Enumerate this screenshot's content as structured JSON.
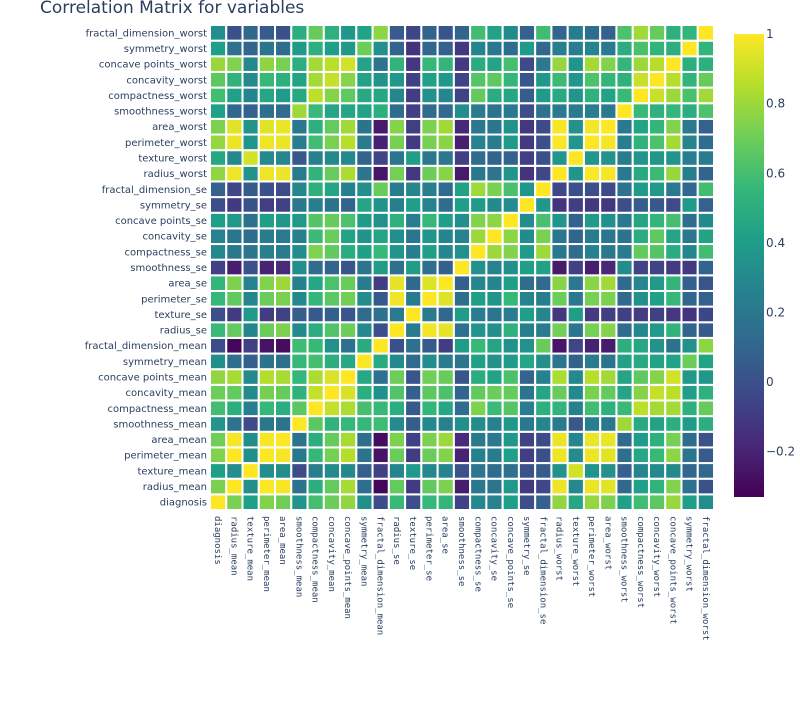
{
  "chart_data": {
    "type": "heatmap",
    "title": "Correlation Matrix for variables",
    "colorscale": "viridis",
    "colorscale_stops": [
      "#440154",
      "#482878",
      "#3e4989",
      "#31688e",
      "#26828e",
      "#1f9e89",
      "#35b779",
      "#6ece58",
      "#b5de2b",
      "#fde725"
    ],
    "zmin": -0.33,
    "zmax": 1.0,
    "colorbar_ticks": [
      1,
      0.8,
      0.6,
      0.4,
      0.2,
      0,
      -0.2
    ],
    "colorbar_tick_labels": [
      "1",
      "0.8",
      "0.6",
      "0.4",
      "0.2",
      "0",
      "−0.2"
    ],
    "variables": [
      "diagnosis",
      "radius_mean",
      "texture_mean",
      "perimeter_mean",
      "area_mean",
      "smoothness_mean",
      "compactness_mean",
      "concavity_mean",
      "concave points_mean",
      "symmetry_mean",
      "fractal_dimension_mean",
      "radius_se",
      "texture_se",
      "perimeter_se",
      "area_se",
      "smoothness_se",
      "compactness_se",
      "concavity_se",
      "concave points_se",
      "symmetry_se",
      "fractal_dimension_se",
      "radius_worst",
      "texture_worst",
      "perimeter_worst",
      "area_worst",
      "smoothness_worst",
      "compactness_worst",
      "concavity_worst",
      "concave points_worst",
      "symmetry_worst",
      "fractal_dimension_worst"
    ],
    "x_labels": [
      "diagnosis",
      "radius_mean",
      "texture_mean",
      "perimeter_mean",
      "area_mean",
      "smoothness_mean",
      "compactness_mean",
      "concavity_mean",
      "concave_points_mean",
      "symmetry_mean",
      "fractal_dimension_mean",
      "radius_se",
      "texture_se",
      "perimeter_se",
      "area_se",
      "smoothness_se",
      "compactness_se",
      "concavity_se",
      "concave_points_se",
      "symmetry_se",
      "fractal_dimension_se",
      "radius_worst",
      "texture_worst",
      "perimeter_worst",
      "area_worst",
      "smoothness_worst",
      "compactness_worst",
      "concavity_worst",
      "concave_points_worst",
      "symmetry_worst",
      "fractal_dimension_worst"
    ],
    "z": [
      [
        1.0,
        0.73,
        0.415,
        0.743,
        0.709,
        0.359,
        0.597,
        0.696,
        0.777,
        0.33,
        -0.013,
        0.567,
        -0.008,
        0.556,
        0.548,
        -0.067,
        0.293,
        0.254,
        0.408,
        -0.007,
        0.078,
        0.776,
        0.457,
        0.783,
        0.734,
        0.421,
        0.591,
        0.66,
        0.794,
        0.416,
        0.324
      ],
      [
        0.73,
        1.0,
        0.324,
        0.998,
        0.987,
        0.171,
        0.506,
        0.677,
        0.823,
        0.148,
        -0.312,
        0.679,
        -0.097,
        0.674,
        0.736,
        -0.223,
        0.206,
        0.194,
        0.376,
        -0.104,
        -0.043,
        0.97,
        0.297,
        0.965,
        0.941,
        0.12,
        0.413,
        0.527,
        0.744,
        0.164,
        0.007
      ],
      [
        0.415,
        0.324,
        1.0,
        0.33,
        0.321,
        -0.023,
        0.237,
        0.302,
        0.293,
        0.071,
        -0.076,
        0.276,
        0.386,
        0.282,
        0.26,
        0.007,
        0.192,
        0.143,
        0.164,
        0.009,
        0.054,
        0.353,
        0.912,
        0.358,
        0.344,
        0.078,
        0.278,
        0.301,
        0.295,
        0.105,
        0.119
      ],
      [
        0.743,
        0.998,
        0.33,
        1.0,
        0.987,
        0.207,
        0.557,
        0.716,
        0.851,
        0.183,
        -0.261,
        0.692,
        -0.087,
        0.693,
        0.745,
        -0.203,
        0.251,
        0.228,
        0.407,
        -0.082,
        -0.006,
        0.969,
        0.303,
        0.97,
        0.942,
        0.151,
        0.456,
        0.564,
        0.771,
        0.189,
        0.051
      ],
      [
        0.709,
        0.987,
        0.321,
        0.987,
        1.0,
        0.177,
        0.499,
        0.686,
        0.823,
        0.151,
        -0.283,
        0.733,
        -0.066,
        0.727,
        0.8,
        -0.167,
        0.213,
        0.208,
        0.372,
        -0.072,
        -0.02,
        0.963,
        0.287,
        0.959,
        0.959,
        0.124,
        0.39,
        0.513,
        0.722,
        0.144,
        0.004
      ],
      [
        0.359,
        0.171,
        -0.023,
        0.207,
        0.177,
        1.0,
        0.659,
        0.522,
        0.554,
        0.558,
        0.585,
        0.301,
        0.068,
        0.296,
        0.247,
        0.332,
        0.319,
        0.248,
        0.381,
        0.201,
        0.284,
        0.213,
        0.036,
        0.239,
        0.207,
        0.805,
        0.472,
        0.435,
        0.503,
        0.394,
        0.499
      ],
      [
        0.597,
        0.506,
        0.237,
        0.557,
        0.499,
        0.659,
        1.0,
        0.883,
        0.831,
        0.603,
        0.565,
        0.497,
        0.046,
        0.549,
        0.456,
        0.135,
        0.739,
        0.571,
        0.642,
        0.23,
        0.507,
        0.535,
        0.248,
        0.59,
        0.51,
        0.566,
        0.866,
        0.816,
        0.816,
        0.51,
        0.687
      ],
      [
        0.696,
        0.677,
        0.302,
        0.716,
        0.686,
        0.522,
        0.883,
        1.0,
        0.921,
        0.501,
        0.337,
        0.632,
        0.076,
        0.66,
        0.617,
        0.099,
        0.67,
        0.691,
        0.683,
        0.178,
        0.449,
        0.688,
        0.3,
        0.73,
        0.676,
        0.449,
        0.755,
        0.884,
        0.861,
        0.409,
        0.515
      ],
      [
        0.777,
        0.823,
        0.293,
        0.851,
        0.823,
        0.554,
        0.831,
        0.921,
        1.0,
        0.462,
        0.167,
        0.698,
        0.021,
        0.711,
        0.69,
        0.028,
        0.49,
        0.439,
        0.616,
        0.095,
        0.258,
        0.83,
        0.293,
        0.856,
        0.81,
        0.453,
        0.667,
        0.752,
        0.91,
        0.376,
        0.369
      ],
      [
        0.33,
        0.148,
        0.071,
        0.183,
        0.151,
        0.558,
        0.603,
        0.501,
        0.462,
        1.0,
        0.48,
        0.303,
        0.128,
        0.314,
        0.224,
        0.187,
        0.422,
        0.343,
        0.393,
        0.449,
        0.332,
        0.186,
        0.091,
        0.219,
        0.177,
        0.427,
        0.473,
        0.434,
        0.43,
        0.7,
        0.438
      ],
      [
        -0.013,
        -0.312,
        -0.076,
        -0.261,
        -0.283,
        0.585,
        0.565,
        0.337,
        0.167,
        0.48,
        1.0,
        0.0,
        0.164,
        0.04,
        -0.09,
        0.402,
        0.56,
        0.447,
        0.341,
        0.345,
        0.688,
        -0.254,
        -0.051,
        -0.205,
        -0.232,
        0.505,
        0.459,
        0.346,
        0.175,
        0.334,
        0.767
      ],
      [
        0.567,
        0.679,
        0.276,
        0.692,
        0.733,
        0.301,
        0.497,
        0.632,
        0.698,
        0.303,
        0.0,
        1.0,
        0.213,
        0.973,
        0.952,
        0.165,
        0.356,
        0.332,
        0.514,
        0.241,
        0.228,
        0.715,
        0.195,
        0.72,
        0.752,
        0.142,
        0.287,
        0.381,
        0.531,
        0.095,
        0.05
      ],
      [
        -0.008,
        -0.097,
        0.386,
        -0.087,
        -0.066,
        0.068,
        0.046,
        0.076,
        0.021,
        0.128,
        0.164,
        0.213,
        1.0,
        0.223,
        0.112,
        0.397,
        0.232,
        0.195,
        0.23,
        0.412,
        0.28,
        -0.112,
        0.409,
        -0.102,
        -0.083,
        -0.074,
        -0.092,
        -0.069,
        -0.12,
        -0.128,
        -0.046
      ],
      [
        0.556,
        0.674,
        0.282,
        0.693,
        0.727,
        0.296,
        0.549,
        0.66,
        0.711,
        0.314,
        0.04,
        0.973,
        0.223,
        1.0,
        0.938,
        0.151,
        0.416,
        0.362,
        0.556,
        0.266,
        0.244,
        0.697,
        0.2,
        0.721,
        0.731,
        0.13,
        0.342,
        0.419,
        0.555,
        0.11,
        0.085
      ],
      [
        0.548,
        0.736,
        0.26,
        0.745,
        0.8,
        0.247,
        0.456,
        0.617,
        0.69,
        0.224,
        -0.09,
        0.952,
        0.112,
        0.938,
        1.0,
        0.075,
        0.285,
        0.271,
        0.416,
        0.134,
        0.127,
        0.757,
        0.196,
        0.761,
        0.811,
        0.125,
        0.283,
        0.385,
        0.538,
        0.074,
        0.018
      ],
      [
        -0.067,
        -0.223,
        0.007,
        -0.203,
        -0.167,
        0.332,
        0.135,
        0.099,
        0.028,
        0.187,
        0.402,
        0.165,
        0.397,
        0.151,
        0.075,
        1.0,
        0.337,
        0.269,
        0.328,
        0.414,
        0.427,
        -0.231,
        -0.075,
        -0.217,
        -0.182,
        0.314,
        -0.056,
        -0.058,
        -0.102,
        -0.107,
        0.101
      ],
      [
        0.293,
        0.206,
        0.192,
        0.251,
        0.213,
        0.319,
        0.739,
        0.67,
        0.49,
        0.422,
        0.56,
        0.356,
        0.232,
        0.416,
        0.285,
        0.337,
        1.0,
        0.801,
        0.744,
        0.395,
        0.803,
        0.205,
        0.143,
        0.261,
        0.199,
        0.227,
        0.679,
        0.639,
        0.483,
        0.278,
        0.591
      ],
      [
        0.254,
        0.194,
        0.143,
        0.228,
        0.208,
        0.248,
        0.571,
        0.691,
        0.439,
        0.343,
        0.447,
        0.332,
        0.195,
        0.362,
        0.271,
        0.269,
        0.801,
        1.0,
        0.772,
        0.309,
        0.727,
        0.187,
        0.1,
        0.227,
        0.188,
        0.168,
        0.485,
        0.663,
        0.44,
        0.198,
        0.439
      ],
      [
        0.408,
        0.376,
        0.164,
        0.407,
        0.372,
        0.381,
        0.642,
        0.683,
        0.616,
        0.393,
        0.341,
        0.514,
        0.23,
        0.556,
        0.416,
        0.328,
        0.744,
        0.772,
        1.0,
        0.313,
        0.611,
        0.358,
        0.087,
        0.395,
        0.342,
        0.215,
        0.453,
        0.55,
        0.602,
        0.143,
        0.311
      ],
      [
        -0.007,
        -0.104,
        0.009,
        -0.082,
        -0.072,
        0.201,
        0.23,
        0.178,
        0.095,
        0.449,
        0.345,
        0.241,
        0.412,
        0.266,
        0.134,
        0.414,
        0.395,
        0.309,
        0.313,
        1.0,
        0.369,
        -0.128,
        -0.077,
        -0.104,
        -0.11,
        -0.013,
        0.06,
        0.037,
        -0.03,
        0.389,
        0.078
      ],
      [
        0.078,
        -0.043,
        0.054,
        -0.006,
        -0.02,
        0.284,
        0.507,
        0.449,
        0.258,
        0.332,
        0.688,
        0.228,
        0.28,
        0.244,
        0.127,
        0.427,
        0.803,
        0.727,
        0.611,
        0.369,
        1.0,
        -0.037,
        -0.003,
        -0.001,
        -0.023,
        0.171,
        0.39,
        0.38,
        0.215,
        0.111,
        0.591
      ],
      [
        0.776,
        0.97,
        0.353,
        0.969,
        0.963,
        0.213,
        0.535,
        0.688,
        0.83,
        0.186,
        -0.254,
        0.715,
        -0.112,
        0.697,
        0.757,
        -0.231,
        0.205,
        0.187,
        0.358,
        -0.128,
        -0.037,
        1.0,
        0.36,
        0.994,
        0.984,
        0.217,
        0.476,
        0.574,
        0.787,
        0.244,
        0.093
      ],
      [
        0.457,
        0.297,
        0.912,
        0.303,
        0.287,
        0.036,
        0.248,
        0.3,
        0.293,
        0.091,
        -0.051,
        0.195,
        0.409,
        0.2,
        0.196,
        -0.075,
        0.143,
        0.1,
        0.087,
        -0.077,
        -0.003,
        0.36,
        1.0,
        0.365,
        0.346,
        0.225,
        0.361,
        0.368,
        0.36,
        0.233,
        0.219
      ],
      [
        0.783,
        0.965,
        0.358,
        0.97,
        0.959,
        0.239,
        0.59,
        0.73,
        0.856,
        0.219,
        -0.205,
        0.72,
        -0.102,
        0.721,
        0.761,
        -0.217,
        0.261,
        0.227,
        0.395,
        -0.104,
        -0.001,
        0.994,
        0.365,
        1.0,
        0.978,
        0.237,
        0.529,
        0.618,
        0.816,
        0.27,
        0.139
      ],
      [
        0.734,
        0.941,
        0.344,
        0.942,
        0.959,
        0.207,
        0.51,
        0.676,
        0.81,
        0.177,
        -0.232,
        0.752,
        -0.083,
        0.731,
        0.811,
        -0.182,
        0.199,
        0.188,
        0.342,
        -0.11,
        -0.023,
        0.984,
        0.346,
        0.978,
        1.0,
        0.209,
        0.438,
        0.543,
        0.747,
        0.209,
        0.08
      ],
      [
        0.421,
        0.12,
        0.078,
        0.151,
        0.124,
        0.805,
        0.566,
        0.449,
        0.453,
        0.427,
        0.505,
        0.142,
        -0.074,
        0.13,
        0.125,
        0.314,
        0.227,
        0.168,
        0.215,
        -0.013,
        0.171,
        0.217,
        0.225,
        0.237,
        0.209,
        1.0,
        0.568,
        0.518,
        0.548,
        0.494,
        0.618
      ],
      [
        0.591,
        0.413,
        0.278,
        0.456,
        0.39,
        0.472,
        0.866,
        0.755,
        0.667,
        0.473,
        0.459,
        0.287,
        -0.092,
        0.342,
        0.283,
        -0.056,
        0.679,
        0.485,
        0.453,
        0.06,
        0.39,
        0.476,
        0.361,
        0.529,
        0.438,
        0.568,
        1.0,
        0.892,
        0.801,
        0.614,
        0.81
      ],
      [
        0.66,
        0.527,
        0.301,
        0.564,
        0.513,
        0.435,
        0.816,
        0.884,
        0.752,
        0.434,
        0.346,
        0.381,
        -0.069,
        0.419,
        0.385,
        -0.058,
        0.639,
        0.663,
        0.55,
        0.037,
        0.38,
        0.574,
        0.368,
        0.618,
        0.543,
        0.518,
        0.892,
        1.0,
        0.855,
        0.533,
        0.687
      ],
      [
        0.794,
        0.744,
        0.295,
        0.771,
        0.722,
        0.503,
        0.816,
        0.861,
        0.91,
        0.43,
        0.175,
        0.531,
        -0.12,
        0.555,
        0.538,
        -0.102,
        0.483,
        0.44,
        0.602,
        -0.03,
        0.215,
        0.787,
        0.36,
        0.816,
        0.747,
        0.548,
        0.801,
        0.855,
        1.0,
        0.503,
        0.511
      ],
      [
        0.416,
        0.164,
        0.105,
        0.189,
        0.144,
        0.394,
        0.51,
        0.409,
        0.376,
        0.7,
        0.334,
        0.095,
        -0.128,
        0.11,
        0.074,
        -0.107,
        0.278,
        0.198,
        0.143,
        0.389,
        0.111,
        0.244,
        0.233,
        0.27,
        0.209,
        0.494,
        0.614,
        0.533,
        0.503,
        1.0,
        0.538
      ],
      [
        0.324,
        0.007,
        0.119,
        0.051,
        0.004,
        0.499,
        0.687,
        0.515,
        0.369,
        0.438,
        0.767,
        0.05,
        -0.046,
        0.085,
        0.018,
        0.101,
        0.591,
        0.439,
        0.311,
        0.078,
        0.591,
        0.093,
        0.219,
        0.139,
        0.08,
        0.618,
        0.81,
        0.687,
        0.511,
        0.538,
        1.0
      ]
    ]
  }
}
